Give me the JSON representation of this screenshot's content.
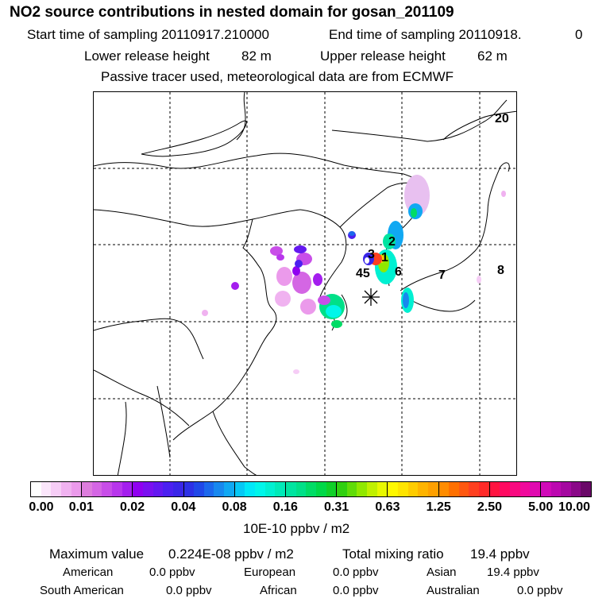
{
  "header": {
    "title": "NO2 source contributions in nested domain for gosan_201109",
    "start_label": "Start time of sampling 20110917.210000",
    "end_label": "End time of sampling 20110918.",
    "end_value": "0",
    "lower_label": "Lower release height",
    "lower_value": "82 m",
    "upper_label": "Upper release height",
    "upper_value": "62 m",
    "note": "Passive tracer used, meteorological data are from ECMWF"
  },
  "map": {
    "region_labels": [
      "20",
      "8",
      "7",
      "6",
      "45",
      "3",
      "2",
      "1"
    ],
    "receptor_symbol": "*"
  },
  "colorbar": {
    "ticks": [
      "0.00",
      "0.01",
      "0.02",
      "0.04",
      "0.08",
      "0.16",
      "0.31",
      "0.63",
      "1.25",
      "2.50",
      "5.00",
      "10.00"
    ],
    "unit": "10E-10 ppbv / m2",
    "segments": [
      [
        "#ffffff",
        "#fbe6fb",
        "#f6cdf6",
        "#f0b2f0",
        "#eb9aeb"
      ],
      [
        "#dd7ddd",
        "#d466e4",
        "#c84ee8",
        "#b836ec",
        "#a41eee"
      ],
      [
        "#9000f0",
        "#7a10f0",
        "#6418f0",
        "#4c20f0",
        "#3a26e8"
      ],
      [
        "#2d30e6",
        "#2048e8",
        "#1c68ec",
        "#1888ee",
        "#10a8f2"
      ],
      [
        "#06c8f6",
        "#00e8f8",
        "#00f6ea",
        "#00f0d2",
        "#00eab8"
      ],
      [
        "#00e4a0",
        "#00e088",
        "#00dc66",
        "#00d848",
        "#10d028"
      ],
      [
        "#30d010",
        "#60dc08",
        "#90e800",
        "#c0f000",
        "#e8f800"
      ],
      [
        "#fff800",
        "#ffe400",
        "#ffcc00",
        "#ffb400",
        "#ffa000"
      ],
      [
        "#ff8c00",
        "#ff7000",
        "#ff5810",
        "#ff4020",
        "#ff2a28"
      ],
      [
        "#ff1440",
        "#ff0a60",
        "#f80a80",
        "#f00a9c",
        "#e00ab0"
      ],
      [
        "#d00ab8",
        "#bc08b0",
        "#a408a0",
        "#8a0888",
        "#6a0868"
      ]
    ]
  },
  "footer": {
    "max_label": "Maximum value",
    "max_value": "0.224E-08 ppbv / m2",
    "total_label": "Total mixing ratio",
    "total_value": "19.4 ppbv",
    "regions": [
      {
        "name": "American",
        "value": "0.0 ppbv"
      },
      {
        "name": "European",
        "value": "0.0 ppbv"
      },
      {
        "name": "Asian",
        "value": "19.4 ppbv"
      },
      {
        "name": "South American",
        "value": "0.0 ppbv"
      },
      {
        "name": "African",
        "value": "0.0 ppbv"
      },
      {
        "name": "Australian",
        "value": "0.0 ppbv"
      }
    ]
  }
}
